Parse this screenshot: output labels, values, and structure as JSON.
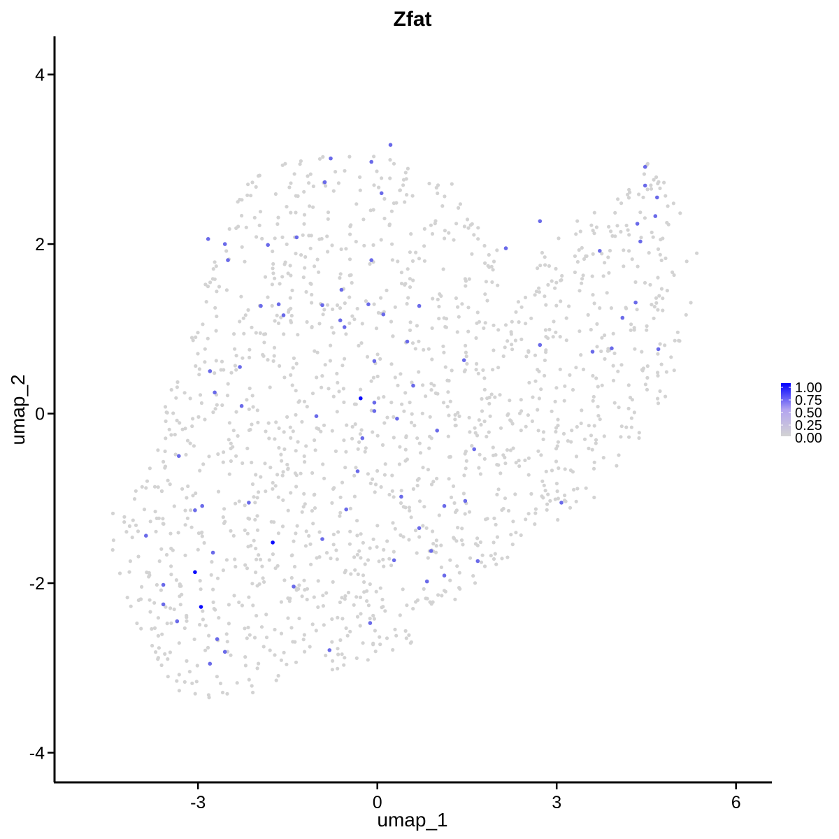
{
  "chart_data": {
    "type": "scatter",
    "title": "Zfat",
    "xlabel": "umap_1",
    "ylabel": "umap_2",
    "xlim": [
      -5.4,
      6.6
    ],
    "ylim": [
      -4.35,
      4.45
    ],
    "x_ticks": [
      -3,
      0,
      3,
      6
    ],
    "x_tick_labels": [
      "-3",
      "0",
      "3",
      "6"
    ],
    "y_ticks": [
      -4,
      -2,
      0,
      2,
      4
    ],
    "y_tick_labels": [
      "-4",
      "-2",
      "0",
      "2",
      "4"
    ],
    "grid": false,
    "legend": {
      "placement": "right",
      "type": "colorbar",
      "labels": [
        "1.00",
        "0.75",
        "0.50",
        "0.25",
        "0.00"
      ],
      "values": [
        1.0,
        0.75,
        0.5,
        0.25,
        0.0
      ],
      "low_color": "#d3d3d3",
      "high_color": "#0000ff"
    },
    "background_color": "#d3d3d3",
    "expressing_points": [
      {
        "x": 0.22,
        "y": 3.17,
        "v": 0.5
      },
      {
        "x": -0.78,
        "y": 3.01,
        "v": 0.5
      },
      {
        "x": -0.1,
        "y": 2.97,
        "v": 0.5
      },
      {
        "x": -0.88,
        "y": 2.73,
        "v": 0.5
      },
      {
        "x": 0.07,
        "y": 2.6,
        "v": 0.5
      },
      {
        "x": -2.83,
        "y": 2.06,
        "v": 0.5
      },
      {
        "x": -2.55,
        "y": 2.0,
        "v": 0.5
      },
      {
        "x": -1.83,
        "y": 1.99,
        "v": 0.5
      },
      {
        "x": -1.35,
        "y": 2.08,
        "v": 0.5
      },
      {
        "x": -2.5,
        "y": 1.81,
        "v": 0.5
      },
      {
        "x": -0.1,
        "y": 1.81,
        "v": 0.5
      },
      {
        "x": -0.6,
        "y": 1.46,
        "v": 0.5
      },
      {
        "x": -1.95,
        "y": 1.27,
        "v": 0.5
      },
      {
        "x": -1.65,
        "y": 1.29,
        "v": 0.5
      },
      {
        "x": -0.92,
        "y": 1.28,
        "v": 0.5
      },
      {
        "x": -0.15,
        "y": 1.29,
        "v": 0.5
      },
      {
        "x": -1.57,
        "y": 1.16,
        "v": 0.5
      },
      {
        "x": 0.1,
        "y": 1.17,
        "v": 0.5
      },
      {
        "x": 0.7,
        "y": 1.27,
        "v": 0.5
      },
      {
        "x": -0.62,
        "y": 1.1,
        "v": 0.5
      },
      {
        "x": -0.55,
        "y": 1.02,
        "v": 0.5
      },
      {
        "x": 0.5,
        "y": 0.85,
        "v": 0.5
      },
      {
        "x": 2.72,
        "y": 0.81,
        "v": 0.5
      },
      {
        "x": -0.05,
        "y": 0.62,
        "v": 0.5
      },
      {
        "x": 1.45,
        "y": 0.63,
        "v": 0.5
      },
      {
        "x": -2.3,
        "y": 0.55,
        "v": 0.5
      },
      {
        "x": -2.8,
        "y": 0.5,
        "v": 0.5
      },
      {
        "x": 0.6,
        "y": 0.33,
        "v": 0.5
      },
      {
        "x": -2.72,
        "y": 0.25,
        "v": 0.5
      },
      {
        "x": -0.28,
        "y": 0.18,
        "v": 0.95
      },
      {
        "x": -0.05,
        "y": 0.13,
        "v": 0.5
      },
      {
        "x": -2.27,
        "y": 0.09,
        "v": 0.5
      },
      {
        "x": -0.05,
        "y": 0.03,
        "v": 0.5
      },
      {
        "x": -1.02,
        "y": -0.03,
        "v": 0.5
      },
      {
        "x": 0.33,
        "y": -0.06,
        "v": 0.5
      },
      {
        "x": 1.0,
        "y": -0.2,
        "v": 0.5
      },
      {
        "x": -0.25,
        "y": -0.29,
        "v": 0.5
      },
      {
        "x": -3.32,
        "y": -0.5,
        "v": 0.5
      },
      {
        "x": 1.62,
        "y": -0.42,
        "v": 0.5
      },
      {
        "x": -0.33,
        "y": -0.68,
        "v": 0.5
      },
      {
        "x": 0.4,
        "y": -0.98,
        "v": 0.5
      },
      {
        "x": 1.47,
        "y": -1.03,
        "v": 0.5
      },
      {
        "x": 3.08,
        "y": -1.05,
        "v": 0.5
      },
      {
        "x": -2.15,
        "y": -1.05,
        "v": 0.5
      },
      {
        "x": 1.12,
        "y": -1.09,
        "v": 0.5
      },
      {
        "x": -3.05,
        "y": -1.14,
        "v": 0.5
      },
      {
        "x": -2.93,
        "y": -1.09,
        "v": 0.5
      },
      {
        "x": -0.52,
        "y": -1.13,
        "v": 0.5
      },
      {
        "x": 0.7,
        "y": -1.35,
        "v": 0.5
      },
      {
        "x": -3.87,
        "y": -1.44,
        "v": 0.5
      },
      {
        "x": -0.92,
        "y": -1.48,
        "v": 0.5
      },
      {
        "x": -1.75,
        "y": -1.52,
        "v": 0.95
      },
      {
        "x": -2.75,
        "y": -1.64,
        "v": 0.5
      },
      {
        "x": 0.9,
        "y": -1.62,
        "v": 0.5
      },
      {
        "x": 1.68,
        "y": -1.74,
        "v": 0.5
      },
      {
        "x": 0.28,
        "y": -1.73,
        "v": 0.5
      },
      {
        "x": -3.05,
        "y": -1.87,
        "v": 0.95
      },
      {
        "x": 1.12,
        "y": -1.91,
        "v": 0.5
      },
      {
        "x": 0.83,
        "y": -1.98,
        "v": 0.5
      },
      {
        "x": -3.58,
        "y": -2.02,
        "v": 0.5
      },
      {
        "x": -1.4,
        "y": -2.04,
        "v": 0.5
      },
      {
        "x": -3.58,
        "y": -2.25,
        "v": 0.5
      },
      {
        "x": -2.95,
        "y": -2.28,
        "v": 0.95
      },
      {
        "x": -3.35,
        "y": -2.45,
        "v": 0.5
      },
      {
        "x": -0.12,
        "y": -2.47,
        "v": 0.5
      },
      {
        "x": -2.68,
        "y": -2.66,
        "v": 0.5
      },
      {
        "x": -0.8,
        "y": -2.79,
        "v": 0.5
      },
      {
        "x": -2.55,
        "y": -2.81,
        "v": 0.5
      },
      {
        "x": -2.8,
        "y": -2.95,
        "v": 0.5
      },
      {
        "x": 2.15,
        "y": 1.95,
        "v": 0.5
      },
      {
        "x": 2.72,
        "y": 2.27,
        "v": 0.5
      },
      {
        "x": 3.72,
        "y": 1.92,
        "v": 0.5
      },
      {
        "x": 4.32,
        "y": 1.31,
        "v": 0.5
      },
      {
        "x": 4.1,
        "y": 1.13,
        "v": 0.5
      },
      {
        "x": 3.92,
        "y": 0.77,
        "v": 0.5
      },
      {
        "x": 4.7,
        "y": 0.76,
        "v": 0.5
      },
      {
        "x": 3.6,
        "y": 0.73,
        "v": 0.5
      },
      {
        "x": 4.48,
        "y": 2.91,
        "v": 0.5
      },
      {
        "x": 4.48,
        "y": 2.69,
        "v": 0.5
      },
      {
        "x": 4.68,
        "y": 2.55,
        "v": 0.5
      },
      {
        "x": 4.65,
        "y": 2.33,
        "v": 0.5
      },
      {
        "x": 4.35,
        "y": 2.24,
        "v": 0.5
      },
      {
        "x": 4.4,
        "y": 2.03,
        "v": 0.5
      }
    ]
  }
}
